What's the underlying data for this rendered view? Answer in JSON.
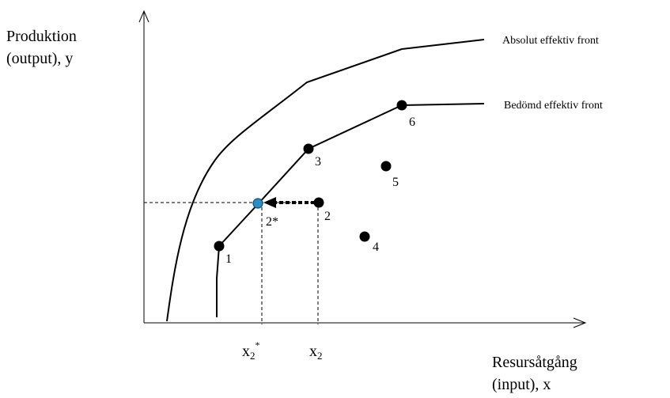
{
  "y_axis_label": [
    "Produktion",
    "(output), y"
  ],
  "x_axis_label": [
    "Resursåtgång",
    "(input), x"
  ],
  "fronts": [
    {
      "label": "Absolut effektiv front"
    },
    {
      "label": "Bedömd effektiv front"
    }
  ],
  "points": [
    {
      "label": "1"
    },
    {
      "label": "2"
    },
    {
      "label": "2*"
    },
    {
      "label": "3"
    },
    {
      "label": "4"
    },
    {
      "label": "5"
    },
    {
      "label": "6"
    }
  ],
  "x_ticks": {
    "x2_star": {
      "base": "x",
      "sub": "2",
      "sup": "*"
    },
    "x2": {
      "base": "x",
      "sub": "2"
    }
  },
  "colors": {
    "line": "#000000",
    "projected_point": "#2a8fc4"
  }
}
